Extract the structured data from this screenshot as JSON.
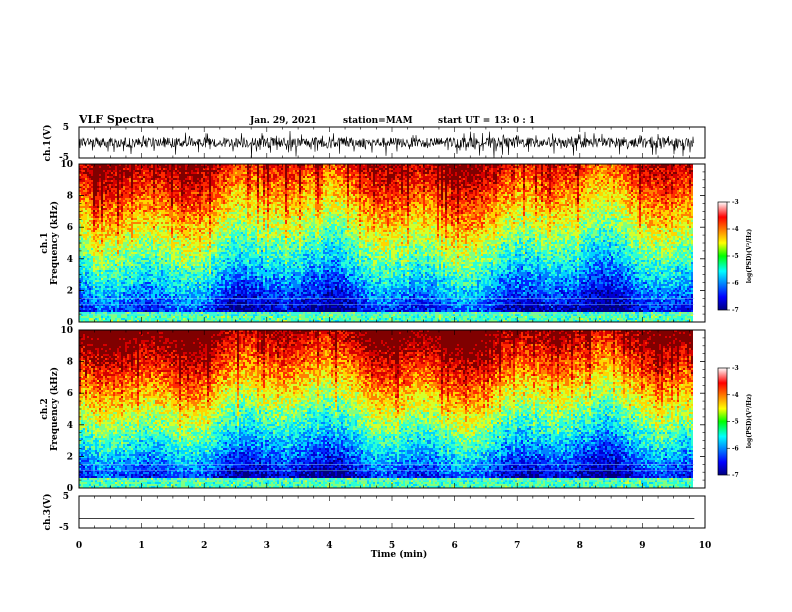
{
  "header": {
    "title": "VLF Spectra",
    "date": "Jan. 29, 2021",
    "station": "station=MAM",
    "start": "start UT =",
    "start_time": "13: 0 : 1"
  },
  "chart_data": [
    {
      "type": "line",
      "panel": "ch1-waveform",
      "ylabel": "ch.1(V)",
      "ylim": [
        -5,
        5
      ],
      "ytick_labels": [
        "5",
        "-5"
      ],
      "x_range_min": [
        0,
        9.83
      ],
      "description_free": true
    },
    {
      "type": "heatmap",
      "panel": "ch1-spectrogram",
      "ylabel_line1": "ch.1",
      "ylabel_line2": "Frequency (kHz)",
      "ylim": [
        0,
        10
      ],
      "ytick_labels": [
        "0",
        "2",
        "4",
        "6",
        "8",
        "10"
      ],
      "colorbar": {
        "label": "log(PSD)(V²/Hz)",
        "range": [
          -7,
          -3
        ],
        "tick_labels": [
          "-3",
          "-4",
          "-5",
          "-6",
          "-7"
        ]
      },
      "strength": 0.35
    },
    {
      "type": "heatmap",
      "panel": "ch2-spectrogram",
      "ylabel_line1": "ch.2",
      "ylabel_line2": "Frequency (kHz)",
      "ylim": [
        0,
        10
      ],
      "ytick_labels": [
        "0",
        "2",
        "4",
        "6",
        "8",
        "10"
      ],
      "colorbar": {
        "label": "log(PSD)(V²/Hz)",
        "range": [
          -7,
          -3
        ],
        "tick_labels": [
          "-3",
          "-4",
          "-5",
          "-6",
          "-7"
        ]
      },
      "strength": 0.55
    },
    {
      "type": "line",
      "panel": "ch3-waveform",
      "ylabel": "ch.3(V)",
      "ylim": [
        -5,
        5
      ],
      "ytick_labels": [
        "5",
        "-5"
      ],
      "series": [
        {
          "x": [
            0,
            9.83
          ],
          "y": [
            -2,
            -2
          ]
        }
      ]
    }
  ],
  "x_axis": {
    "label": "Time (min)",
    "xlim": [
      0,
      10
    ],
    "tick_labels": [
      "0",
      "1",
      "2",
      "3",
      "4",
      "5",
      "6",
      "7",
      "8",
      "9",
      "10"
    ]
  }
}
